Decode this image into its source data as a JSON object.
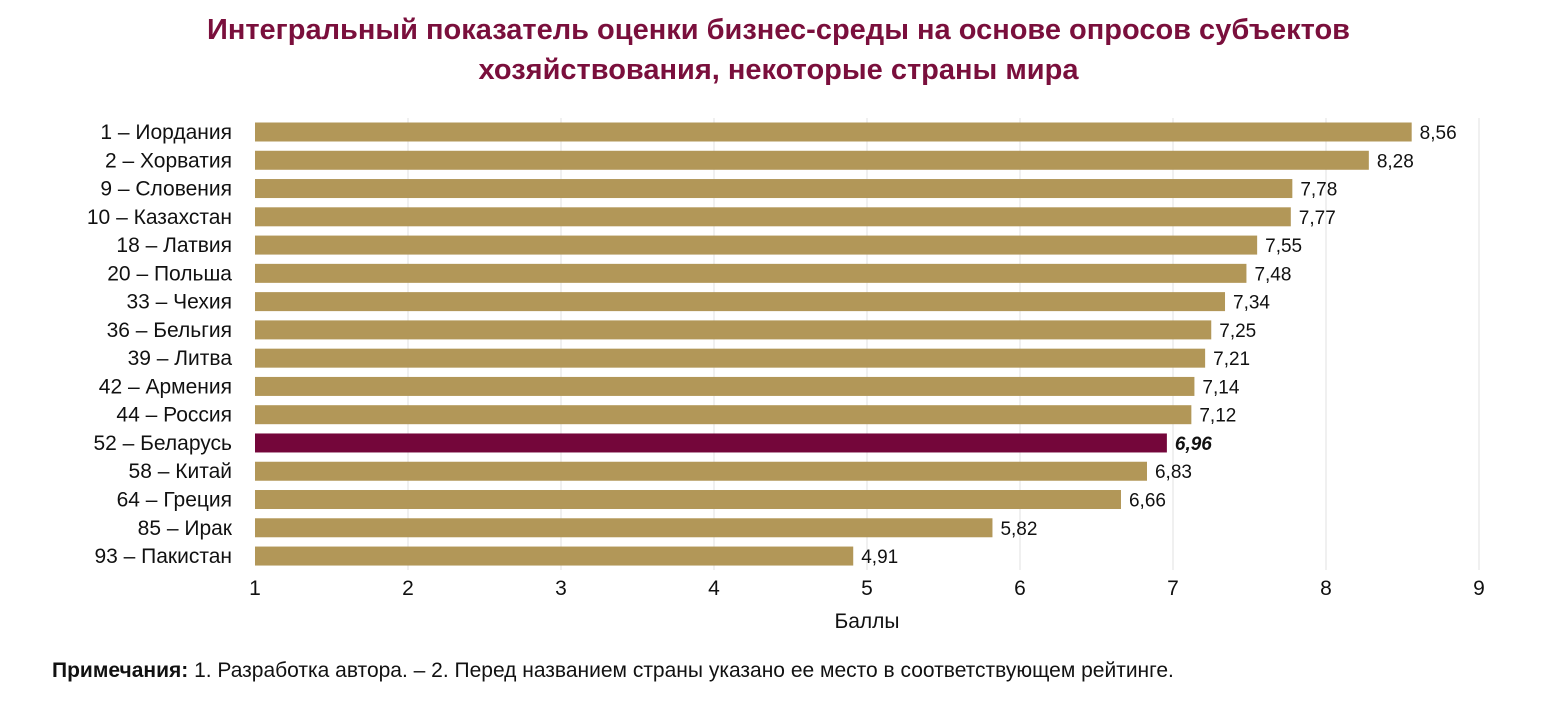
{
  "title_lines": [
    "Интегральный показатель оценки бизнес-среды на основе опросов субъектов",
    "хозяйствования, некоторые страны мира"
  ],
  "colors": {
    "title": "#7a0f3c",
    "bar": "#b29758",
    "highlight_bar": "#74063a",
    "grid": "#e0e0e0"
  },
  "note": {
    "label": "Примечания:",
    "text": " 1. Разработка автора. – 2. Перед названием страны указано ее место в соответствующем рейтинге."
  },
  "chart_data": {
    "type": "bar",
    "orientation": "horizontal",
    "title": "Интегральный показатель оценки бизнес-среды на основе опросов субъектов хозяйствования, некоторые страны мира",
    "xlabel": "Баллы",
    "ylabel": "",
    "xlim": [
      1,
      9
    ],
    "xticks": [
      "1",
      "2",
      "3",
      "4",
      "5",
      "6",
      "7",
      "8",
      "9"
    ],
    "grid": true,
    "highlight": "52 – Беларусь",
    "categories": [
      "1 – Иордания",
      "2 – Хорватия",
      "9 – Словения",
      "10 – Казахстан",
      "18 – Латвия",
      "20 – Польша",
      "33 – Чехия",
      "36 – Бельгия",
      "39 – Литва",
      "42 – Армения",
      "44 – Россия",
      "52 – Беларусь",
      "58 – Китай",
      "64 – Греция",
      "85 – Ирак",
      "93 – Пакистан"
    ],
    "values": [
      8.56,
      8.28,
      7.78,
      7.77,
      7.55,
      7.48,
      7.34,
      7.25,
      7.21,
      7.14,
      7.12,
      6.96,
      6.83,
      6.66,
      5.82,
      4.91
    ],
    "value_labels": [
      "8,56",
      "8,28",
      "7,78",
      "7,77",
      "7,55",
      "7,48",
      "7,34",
      "7,25",
      "7,21",
      "7,14",
      "7,12",
      "6,96",
      "6,83",
      "6,66",
      "5,82",
      "4,91"
    ]
  }
}
